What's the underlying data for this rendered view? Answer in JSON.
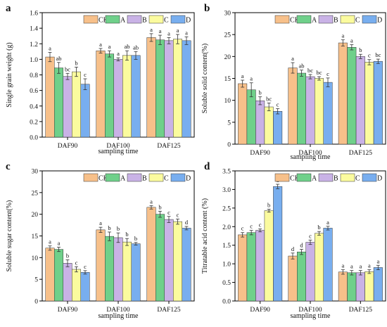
{
  "colors": {
    "CK": "#F7C08A",
    "A": "#6FD08A",
    "B": "#C9B2E6",
    "C": "#FBFB9E",
    "D": "#78AEEF"
  },
  "chart_data": [
    {
      "panel": "a",
      "type": "bar",
      "categories": [
        "DAF90",
        "DAF100",
        "DAF125"
      ],
      "series": [
        {
          "name": "CK",
          "values": [
            1.03,
            1.11,
            1.28
          ],
          "errors": [
            0.06,
            0.03,
            0.05
          ],
          "letters": [
            "a",
            "a",
            "a"
          ]
        },
        {
          "name": "A",
          "values": [
            0.89,
            1.07,
            1.25
          ],
          "errors": [
            0.07,
            0.04,
            0.06
          ],
          "letters": [
            "ab",
            "a",
            "a"
          ]
        },
        {
          "name": "B",
          "values": [
            0.78,
            1.0,
            1.24
          ],
          "errors": [
            0.04,
            0.02,
            0.04
          ],
          "letters": [
            "bc",
            "a",
            "a"
          ]
        },
        {
          "name": "C",
          "values": [
            0.84,
            1.05,
            1.26
          ],
          "errors": [
            0.06,
            0.06,
            0.06
          ],
          "letters": [
            "b",
            "ab",
            "a"
          ]
        },
        {
          "name": "D",
          "values": [
            0.68,
            1.05,
            1.24
          ],
          "errors": [
            0.07,
            0.05,
            0.05
          ],
          "letters": [
            "c",
            "ab",
            "a"
          ]
        }
      ],
      "xlabel": "sampling time",
      "ylabel": "Single grain weight (g)",
      "ylim": [
        0,
        1.6
      ],
      "yticks": [
        "0.0",
        "0.2",
        "0.4",
        "0.6",
        "0.8",
        "1.0",
        "1.2",
        "1.4",
        "1.6"
      ],
      "legend": "top-right"
    },
    {
      "panel": "b",
      "type": "bar",
      "categories": [
        "DAF90",
        "DAF100",
        "DAF125"
      ],
      "series": [
        {
          "name": "CK",
          "values": [
            13.8,
            17.4,
            23.1
          ],
          "errors": [
            0.8,
            1.2,
            0.7
          ],
          "letters": [
            "a",
            "a",
            "a"
          ]
        },
        {
          "name": "A",
          "values": [
            12.4,
            16.2,
            22.1
          ],
          "errors": [
            1.6,
            0.7,
            0.6
          ],
          "letters": [
            "a",
            "ab",
            "a"
          ]
        },
        {
          "name": "B",
          "values": [
            9.9,
            15.4,
            20.0
          ],
          "errors": [
            0.9,
            0.5,
            0.5
          ],
          "letters": [
            "b",
            "bc",
            "b"
          ]
        },
        {
          "name": "C",
          "values": [
            8.5,
            15.0,
            18.7
          ],
          "errors": [
            0.9,
            0.4,
            0.6
          ],
          "letters": [
            "bc",
            "bc",
            "c"
          ]
        },
        {
          "name": "D",
          "values": [
            7.5,
            14.1,
            18.9
          ],
          "errors": [
            0.6,
            1.0,
            0.5
          ],
          "letters": [
            "c",
            "c",
            "bc"
          ]
        }
      ],
      "xlabel": "sampling time",
      "ylabel": "Soluble solid content(%)",
      "ylim": [
        0,
        30
      ],
      "yticks": [
        "0",
        "5",
        "10",
        "15",
        "20",
        "25",
        "30"
      ],
      "legend": "top-right"
    },
    {
      "panel": "c",
      "type": "bar",
      "categories": [
        "DAF90",
        "DAF100",
        "DAF125"
      ],
      "series": [
        {
          "name": "CK",
          "values": [
            12.2,
            16.4,
            21.6
          ],
          "errors": [
            0.5,
            0.6,
            0.4
          ],
          "letters": [
            "a",
            "a",
            "a"
          ]
        },
        {
          "name": "A",
          "values": [
            11.9,
            14.9,
            20.0
          ],
          "errors": [
            0.5,
            1.0,
            0.7
          ],
          "letters": [
            "a",
            "b",
            "b"
          ]
        },
        {
          "name": "B",
          "values": [
            8.7,
            14.6,
            18.8
          ],
          "errors": [
            0.8,
            1.1,
            0.7
          ],
          "letters": [
            "b",
            "b",
            "c"
          ]
        },
        {
          "name": "C",
          "values": [
            7.3,
            13.6,
            18.3
          ],
          "errors": [
            0.6,
            0.8,
            0.6
          ],
          "letters": [
            "c",
            "b",
            "c"
          ]
        },
        {
          "name": "D",
          "values": [
            6.6,
            13.2,
            16.8
          ],
          "errors": [
            0.4,
            0.3,
            0.4
          ],
          "letters": [
            "c",
            "b",
            "d"
          ]
        }
      ],
      "xlabel": "sampling time",
      "ylabel": "Soluble sugar content(%)",
      "ylim": [
        0,
        30
      ],
      "yticks": [
        "0",
        "5",
        "10",
        "15",
        "20",
        "25",
        "30"
      ],
      "legend": "top-right"
    },
    {
      "panel": "d",
      "type": "bar",
      "categories": [
        "DAF90",
        "DAF100",
        "DAF125"
      ],
      "series": [
        {
          "name": "CK",
          "values": [
            1.78,
            1.21,
            0.78
          ],
          "errors": [
            0.06,
            0.08,
            0.06
          ],
          "letters": [
            "c",
            "d",
            "a"
          ]
        },
        {
          "name": "A",
          "values": [
            1.84,
            1.32,
            0.76
          ],
          "errors": [
            0.06,
            0.07,
            0.06
          ],
          "letters": [
            "c",
            "d",
            "a"
          ]
        },
        {
          "name": "B",
          "values": [
            1.9,
            1.58,
            0.76
          ],
          "errors": [
            0.04,
            0.06,
            0.06
          ],
          "letters": [
            "c",
            "c",
            "a"
          ]
        },
        {
          "name": "C",
          "values": [
            2.43,
            1.82,
            0.79
          ],
          "errors": [
            0.04,
            0.05,
            0.05
          ],
          "letters": [
            "b",
            "b",
            "a"
          ]
        },
        {
          "name": "D",
          "values": [
            3.08,
            1.96,
            0.9
          ],
          "errors": [
            0.06,
            0.05,
            0.06
          ],
          "letters": [
            "a",
            "a",
            "a"
          ]
        }
      ],
      "xlabel": "sampling time",
      "ylabel": "Titratable acid content (%)",
      "ylim": [
        0,
        3.5
      ],
      "yticks": [
        "0.0",
        "0.5",
        "1.0",
        "1.5",
        "2.0",
        "2.5",
        "3.0",
        "3.5"
      ],
      "legend": "top-right"
    }
  ]
}
